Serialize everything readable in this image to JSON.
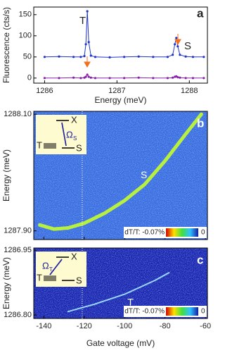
{
  "chart_data": [
    {
      "type": "line",
      "panel": "a",
      "xlabel": "Energy (meV)",
      "ylabel": "Fluorescence (cts/s)",
      "xlim": [
        1285.85,
        1288.25
      ],
      "xticks": [
        1286,
        1287,
        1288
      ],
      "ylim": [
        -12,
        168
      ],
      "yticks": [
        0,
        50,
        100,
        150
      ],
      "x": [
        1286.0,
        1286.2,
        1286.4,
        1286.5,
        1286.55,
        1286.57,
        1286.59,
        1286.61,
        1286.64,
        1286.7,
        1286.9,
        1287.1,
        1287.3,
        1287.5,
        1287.7,
        1287.77,
        1287.8,
        1287.82,
        1287.84,
        1287.87,
        1287.95,
        1288.05,
        1288.2
      ],
      "series": [
        {
          "color": "#2233cc",
          "values": [
            50,
            51,
            50,
            50,
            52,
            80,
            158,
            85,
            53,
            50,
            49,
            50,
            51,
            50,
            50,
            55,
            80,
            95,
            75,
            55,
            51,
            50,
            50
          ]
        },
        {
          "color": "#8822aa",
          "values": [
            0,
            0,
            1,
            0,
            1,
            3,
            8,
            3,
            1,
            0,
            0,
            0,
            1,
            0,
            0,
            1,
            3,
            4,
            2,
            1,
            0,
            0,
            0
          ]
        }
      ],
      "annotations": [
        "T",
        "S"
      ]
    },
    {
      "type": "map",
      "panel": "b",
      "ylabel": "Energy (meV)",
      "xlim": [
        -145,
        -59
      ],
      "ylim": [
        1287.885,
        1288.105
      ],
      "yticks": [
        {
          "value": 1287.9,
          "label": "1287.90"
        },
        {
          "value": 1288.1,
          "label": "1288.10"
        }
      ],
      "background": "#3a6ae0",
      "series": [
        {
          "color": "#b8f040",
          "x": [
            -142,
            -135,
            -128,
            -120,
            -110,
            -100,
            -90,
            -80,
            -70,
            -62
          ],
          "values": [
            1287.91,
            1287.903,
            1287.905,
            1287.913,
            1287.93,
            1287.952,
            1287.98,
            1288.02,
            1288.065,
            1288.1
          ]
        }
      ],
      "annotation": "S",
      "marker_x": -121,
      "colorbar_ticks": [
        {
          "value": -0.07,
          "label": "dT/T: -0.07%"
        },
        0
      ],
      "inset": {
        "upper": "X",
        "left": "T",
        "lower": "S",
        "rabi": "Ω",
        "rabi_sub": "S"
      }
    },
    {
      "type": "map",
      "panel": "c",
      "ylabel": "Energy (meV)",
      "xlabel": "Gate voltage (mV)",
      "xlim": [
        -145,
        -59
      ],
      "xticks": [
        -140,
        -120,
        -100,
        -80,
        -60
      ],
      "ylim": [
        1286.792,
        1286.955
      ],
      "yticks": [
        {
          "value": 1286.8,
          "label": "1286.80"
        },
        {
          "value": 1286.95,
          "label": "1286.95"
        }
      ],
      "background": "#1a22b0",
      "series": [
        {
          "color": "#9ad8ff",
          "x": [
            -128,
            -115,
            -100,
            -85,
            -78
          ],
          "values": [
            1286.808,
            1286.825,
            1286.848,
            1286.88,
            1286.898
          ]
        }
      ],
      "annotation": "T",
      "marker_x": -121,
      "colorbar_ticks": [
        {
          "value": -0.07,
          "label": "dT/T: -0.07%"
        },
        0
      ],
      "inset": {
        "upper": "X",
        "left": "T",
        "lower": "S",
        "rabi": "Ω",
        "rabi_sub": "T"
      }
    }
  ]
}
